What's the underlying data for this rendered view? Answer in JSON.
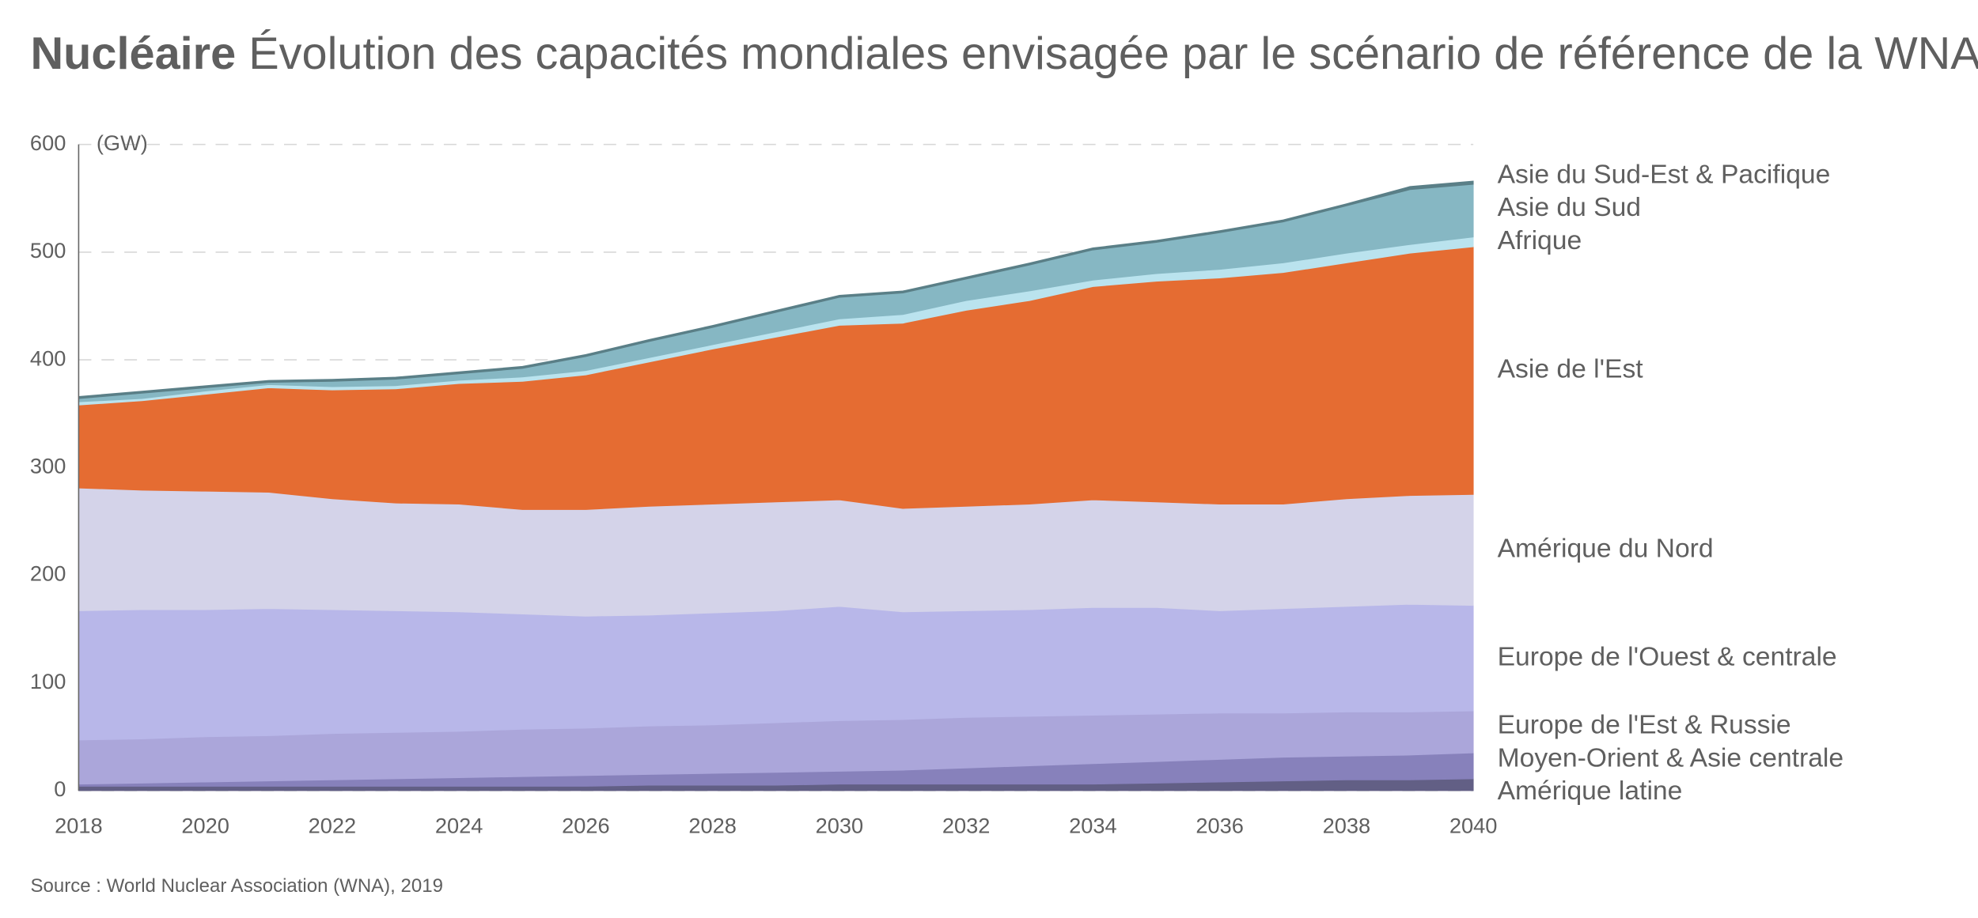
{
  "chart_data": {
    "type": "stacked-area",
    "title_bold": "Nucléaire",
    "title": "Évolution des capacités mondiales envisagée par le scénario de référence de la WNA",
    "y_unit": "(GW)",
    "source": "Source : World Nuclear Association (WNA), 2019",
    "x": [
      2018,
      2019,
      2020,
      2021,
      2022,
      2023,
      2024,
      2025,
      2026,
      2027,
      2028,
      2029,
      2030,
      2031,
      2032,
      2033,
      2034,
      2035,
      2036,
      2037,
      2038,
      2039,
      2040
    ],
    "xlim": [
      2018,
      2040
    ],
    "xticks": [
      2018,
      2020,
      2022,
      2024,
      2026,
      2028,
      2030,
      2032,
      2034,
      2036,
      2038,
      2040
    ],
    "ylim": [
      0,
      600
    ],
    "yticks": [
      0,
      100,
      200,
      300,
      400,
      500,
      600
    ],
    "grid": true,
    "series": [
      {
        "name": "Amérique latine",
        "color": "#625f85",
        "values": [
          4,
          4,
          4,
          4,
          4,
          4,
          4,
          4,
          4,
          5,
          5,
          5,
          6,
          6,
          6,
          6,
          6,
          7,
          8,
          9,
          10,
          10,
          11
        ]
      },
      {
        "name": "Moyen-Orient & Asie centrale",
        "color": "#8781bb",
        "values": [
          2,
          3,
          4,
          5,
          6,
          7,
          8,
          9,
          10,
          10,
          11,
          12,
          12,
          13,
          15,
          17,
          19,
          20,
          21,
          22,
          22,
          23,
          24
        ]
      },
      {
        "name": "Europe de l'Est & Russie",
        "color": "#aba6da",
        "values": [
          41,
          41,
          42,
          42,
          43,
          43,
          43,
          44,
          44,
          45,
          45,
          46,
          47,
          47,
          47,
          46,
          45,
          44,
          43,
          41,
          41,
          40,
          39
        ]
      },
      {
        "name": "Europe de l'Ouest & centrale",
        "color": "#b8b7e9",
        "values": [
          120,
          120,
          118,
          118,
          115,
          113,
          111,
          107,
          104,
          103,
          104,
          104,
          106,
          100,
          99,
          99,
          100,
          99,
          95,
          97,
          98,
          100,
          98
        ]
      },
      {
        "name": "Amérique du Nord",
        "color": "#d4d3e9",
        "values": [
          114,
          111,
          110,
          108,
          103,
          100,
          100,
          97,
          99,
          101,
          101,
          101,
          99,
          96,
          97,
          98,
          100,
          98,
          99,
          97,
          100,
          101,
          103
        ]
      },
      {
        "name": "Asie de l'Est",
        "color": "#e56c32",
        "values": [
          77,
          83,
          90,
          97,
          101,
          106,
          112,
          119,
          125,
          134,
          144,
          153,
          162,
          172,
          182,
          189,
          198,
          205,
          210,
          215,
          219,
          225,
          230
        ]
      },
      {
        "name": "Afrique",
        "color": "#bae3ee",
        "values": [
          3,
          2,
          3,
          3,
          3,
          3,
          3,
          4,
          4,
          4,
          4,
          5,
          6,
          8,
          9,
          9,
          6,
          7,
          8,
          9,
          9,
          8,
          9
        ]
      },
      {
        "name": "Asie du Sud",
        "color": "#86b7c3",
        "values": [
          3,
          5,
          3,
          2,
          5,
          6,
          6,
          8,
          13,
          15,
          16,
          18,
          20,
          20,
          20,
          24,
          28,
          29,
          34,
          38,
          44,
          51,
          49
        ]
      },
      {
        "name": "Asie du Sud-Est & Pacifique",
        "color": "#5a7f87",
        "values": [
          2,
          2,
          2,
          2,
          2,
          2,
          2,
          2,
          2,
          2,
          2,
          2,
          2,
          2,
          2,
          2,
          2,
          2,
          2,
          2,
          2,
          3,
          3
        ]
      }
    ]
  }
}
